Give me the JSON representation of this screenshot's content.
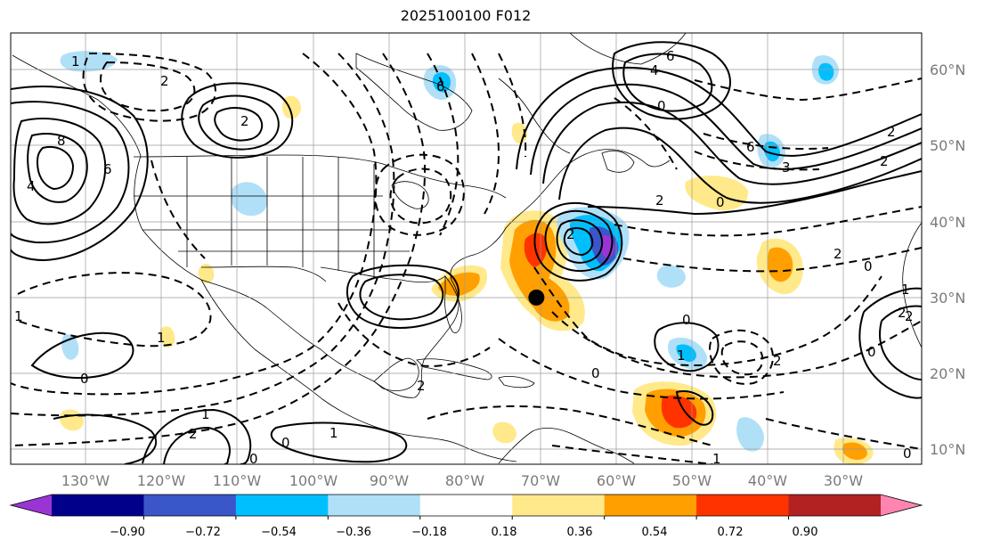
{
  "title": "2025100100 F012",
  "longitude_labels": [
    "130°W",
    "120°W",
    "110°W",
    "100°W",
    "90°W",
    "80°W",
    "70°W",
    "60°W",
    "50°W",
    "40°W",
    "30°W"
  ],
  "latitude_labels": [
    "60°N",
    "50°N",
    "40°N",
    "30°N",
    "20°N",
    "10°N"
  ],
  "colorbar": {
    "tick_labels": [
      "−0.90",
      "−0.72",
      "−0.54",
      "−0.36",
      "−0.18",
      "0.18",
      "0.36",
      "0.54",
      "0.72",
      "0.90"
    ],
    "colors": [
      "#9a35d4",
      "#00008b",
      "#3a56c8",
      "#00bfff",
      "#b0e0f8",
      "#ffffff",
      "#ffe98a",
      "#ff9f00",
      "#ff3300",
      "#b22222",
      "#ff85b0"
    ]
  },
  "contour_labels": [
    "8",
    "6",
    "4",
    "2",
    "2",
    "6",
    "6",
    "4",
    "2",
    "6",
    "2",
    "2",
    "0",
    "0",
    "0",
    "3",
    "2",
    "1",
    "1",
    "1",
    "0",
    "0",
    "2",
    "2",
    "1",
    "1",
    "0",
    "0",
    "2",
    "1",
    "2",
    "1",
    "0",
    "0",
    "2",
    "2",
    "1",
    "0"
  ],
  "markers": [
    {
      "name": "storm-center",
      "lon": -70.5,
      "lat": 30.0
    }
  ]
}
